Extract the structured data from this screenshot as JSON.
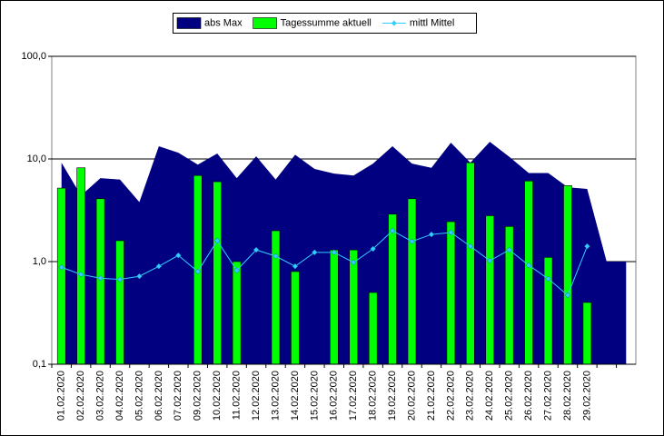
{
  "chart_data": {
    "type": "combo",
    "categories": [
      "01.02.2020",
      "02.02.2020",
      "03.02.2020",
      "04.02.2020",
      "05.02.2020",
      "06.02.2020",
      "07.02.2020",
      "09.02.2020",
      "10.02.2020",
      "11.02.2020",
      "12.02.2020",
      "13.02.2020",
      "14.02.2020",
      "15.02.2020",
      "16.02.2020",
      "17.02.2020",
      "18.02.2020",
      "19.02.2020",
      "20.02.2020",
      "21.02.2020",
      "22.02.2020",
      "23.02.2020",
      "24.02.2020",
      "25.02.2020",
      "26.02.2020",
      "27.02.2020",
      "28.02.2020",
      "29.02.2020",
      null,
      null
    ],
    "series": [
      {
        "name": "abs Max",
        "type": "area",
        "color": "#000080",
        "values": [
          9.2,
          4.4,
          6.5,
          6.3,
          3.8,
          13.3,
          11.5,
          8.8,
          11.3,
          6.5,
          10.6,
          6.3,
          11.0,
          8.0,
          7.2,
          6.9,
          9.0,
          13.3,
          9.0,
          8.2,
          14.4,
          9.2,
          14.7,
          10.5,
          7.3,
          7.3,
          5.3,
          5.1,
          1.0,
          1.0
        ]
      },
      {
        "name": "Tagessumme aktuell",
        "type": "bar",
        "color": "#00ff00",
        "values": [
          5.2,
          8.2,
          4.1,
          1.6,
          null,
          null,
          null,
          6.9,
          6.0,
          1.0,
          null,
          2.0,
          0.8,
          null,
          1.3,
          1.3,
          0.5,
          2.9,
          4.1,
          null,
          2.45,
          9.2,
          2.8,
          2.2,
          6.1,
          1.1,
          5.5,
          0.4,
          null,
          null
        ]
      },
      {
        "name": "mittl Mittel",
        "type": "line",
        "color": "#33ccff",
        "values": [
          0.88,
          0.75,
          0.69,
          0.67,
          0.72,
          0.9,
          1.15,
          0.8,
          1.6,
          0.82,
          1.3,
          1.13,
          0.9,
          1.23,
          1.23,
          0.98,
          1.33,
          2.0,
          1.57,
          1.84,
          1.92,
          1.41,
          1.02,
          1.3,
          0.92,
          0.68,
          0.47,
          1.41,
          null,
          null
        ]
      }
    ],
    "log_scale": true,
    "ylim": [
      0.1,
      100
    ],
    "yticks": [
      {
        "value": 0.1,
        "label": "0,1"
      },
      {
        "value": 1,
        "label": "1,0"
      },
      {
        "value": 10,
        "label": "10,0"
      },
      {
        "value": 100,
        "label": "100,0"
      }
    ],
    "grid": true,
    "legend": "top"
  }
}
